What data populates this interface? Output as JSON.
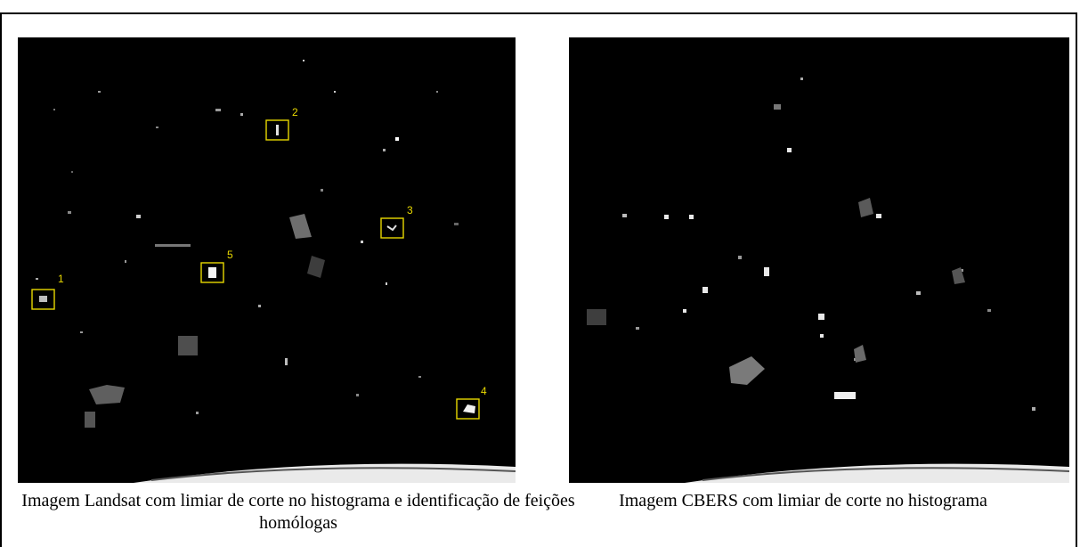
{
  "figure": {
    "left_image": {
      "caption": "Imagem Landsat com limiar de corte no histograma e identificação de feições homólogas",
      "markers": [
        {
          "label": "1"
        },
        {
          "label": "2"
        },
        {
          "label": "3"
        },
        {
          "label": "4"
        },
        {
          "label": "5"
        }
      ]
    },
    "right_image": {
      "caption": "Imagem CBERS com limiar de corte no histograma"
    },
    "colors": {
      "background": "#000000",
      "marker": "#e8d800",
      "features": "#ffffff"
    }
  }
}
